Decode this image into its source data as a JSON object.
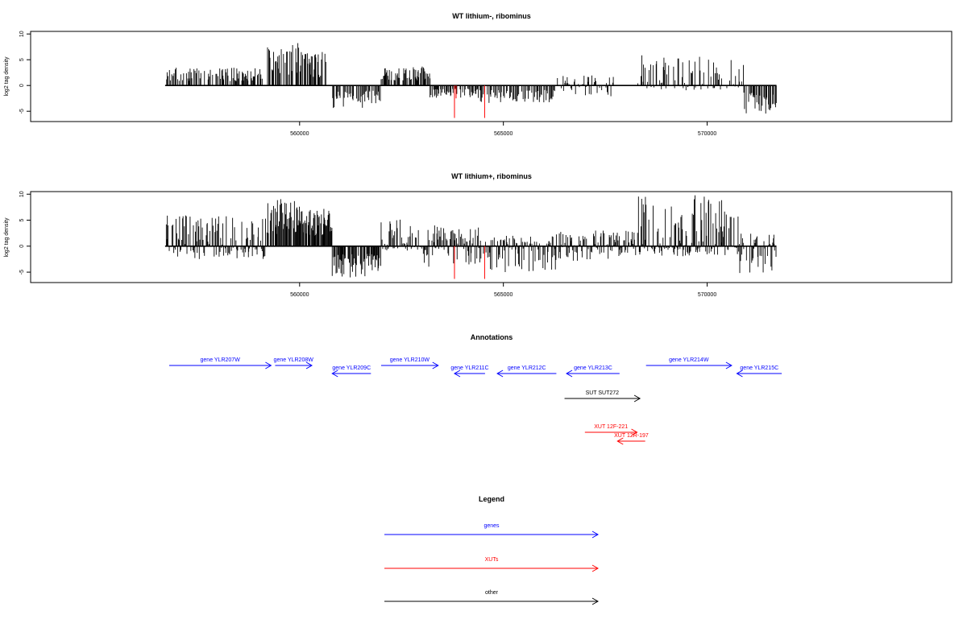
{
  "chart_data": [
    {
      "type": "bar",
      "title": "WT lithium-, ribominus",
      "xlabel": "",
      "ylabel": "log2 tag density",
      "xlim": [
        553400,
        576000
      ],
      "ylim": [
        -7,
        10.5
      ],
      "x_ticks": [
        {
          "value": 560000,
          "label": "560000"
        },
        {
          "value": 565000,
          "label": "565000"
        },
        {
          "value": 570000,
          "label": "570000"
        }
      ],
      "y_ticks": [
        {
          "value": 10,
          "label": "10"
        },
        {
          "value": 5,
          "label": "5"
        },
        {
          "value": 0,
          "label": "0"
        },
        {
          "value": -5,
          "label": "-5"
        }
      ],
      "x_range": [
        556700,
        571700
      ],
      "series": [
        {
          "segments": [
            {
              "from": 556700,
              "to": 559200,
              "min": 0,
              "max": 3.5
            },
            {
              "from": 559200,
              "to": 560100,
              "min": 0,
              "max": 8.3
            },
            {
              "from": 560100,
              "to": 560700,
              "min": 0,
              "max": 6.5
            },
            {
              "from": 560800,
              "to": 561600,
              "min": -4.5,
              "max": 0
            },
            {
              "from": 561600,
              "to": 562000,
              "min": -3.5,
              "max": 0
            },
            {
              "from": 562000,
              "to": 563200,
              "min": 0,
              "max": 3.8
            },
            {
              "from": 563200,
              "to": 564400,
              "min": -2.5,
              "max": 0
            },
            {
              "from": 564400,
              "to": 566300,
              "min": -3.5,
              "max": 0
            },
            {
              "from": 566300,
              "to": 567700,
              "min": -2.5,
              "max": 2
            },
            {
              "from": 568300,
              "to": 570900,
              "min": -1,
              "max": 6
            },
            {
              "from": 570900,
              "to": 571700,
              "min": -5.5,
              "max": 0
            }
          ]
        },
        {
          "red_bars": [
            {
              "x": 563800,
              "y": -6.3
            },
            {
              "x": 564540,
              "y": -6.3
            },
            {
              "x": 563840,
              "y": -2.5
            }
          ]
        }
      ]
    },
    {
      "type": "bar",
      "title": "WT lithium+, ribominus",
      "xlabel": "",
      "ylabel": "log2 tag density",
      "xlim": [
        553400,
        576000
      ],
      "ylim": [
        -7,
        10.5
      ],
      "x_ticks": [
        {
          "value": 560000,
          "label": "560000"
        },
        {
          "value": 565000,
          "label": "565000"
        },
        {
          "value": 570000,
          "label": "570000"
        }
      ],
      "y_ticks": [
        {
          "value": 10,
          "label": "10"
        },
        {
          "value": 5,
          "label": "5"
        },
        {
          "value": 0,
          "label": "0"
        },
        {
          "value": -5,
          "label": "-5"
        }
      ],
      "x_range": [
        556700,
        571700
      ],
      "series": [
        {
          "segments": [
            {
              "from": 556700,
              "to": 559200,
              "min": -2.5,
              "max": 6
            },
            {
              "from": 559200,
              "to": 560100,
              "min": 0,
              "max": 9.2
            },
            {
              "from": 560100,
              "to": 560800,
              "min": 0,
              "max": 7.5
            },
            {
              "from": 560800,
              "to": 561700,
              "min": -6,
              "max": 0
            },
            {
              "from": 561700,
              "to": 562000,
              "min": -5,
              "max": 0
            },
            {
              "from": 562000,
              "to": 563000,
              "min": -1,
              "max": 5.5
            },
            {
              "from": 563000,
              "to": 564400,
              "min": -4,
              "max": 4
            },
            {
              "from": 564400,
              "to": 566300,
              "min": -5,
              "max": 2
            },
            {
              "from": 566300,
              "to": 567700,
              "min": -3,
              "max": 3
            },
            {
              "from": 567700,
              "to": 568300,
              "min": -2,
              "max": 3
            },
            {
              "from": 568300,
              "to": 570800,
              "min": -2,
              "max": 9.8
            },
            {
              "from": 570800,
              "to": 571700,
              "min": -5.5,
              "max": 3
            }
          ]
        },
        {
          "red_bars": [
            {
              "x": 563800,
              "y": -6.3
            },
            {
              "x": 564540,
              "y": -6.3
            }
          ]
        }
      ]
    }
  ],
  "annotations": {
    "title": "Annotations",
    "items": [
      {
        "label": "gene YLR207W",
        "color": "#0000ff",
        "dir": "right",
        "x1": 556800,
        "x2": 559300,
        "row": 0
      },
      {
        "label": "gene YLR208W",
        "color": "#0000ff",
        "dir": "right",
        "x1": 559400,
        "x2": 560300,
        "row": 0
      },
      {
        "label": "gene YLR209C",
        "color": "#0000ff",
        "dir": "left",
        "x1": 560800,
        "x2": 561750,
        "row": 1
      },
      {
        "label": "gene YLR210W",
        "color": "#0000ff",
        "dir": "right",
        "x1": 562000,
        "x2": 563400,
        "row": 0
      },
      {
        "label": "gene YLR211C",
        "color": "#0000ff",
        "dir": "left",
        "x1": 563800,
        "x2": 564550,
        "row": 1
      },
      {
        "label": "gene YLR212C",
        "color": "#0000ff",
        "dir": "left",
        "x1": 564850,
        "x2": 566300,
        "row": 1
      },
      {
        "label": "gene YLR213C",
        "color": "#0000ff",
        "dir": "left",
        "x1": 566550,
        "x2": 567850,
        "row": 1
      },
      {
        "label": "gene YLR214W",
        "color": "#0000ff",
        "dir": "right",
        "x1": 568500,
        "x2": 570600,
        "row": 0
      },
      {
        "label": "gene YLR215C",
        "color": "#0000ff",
        "dir": "left",
        "x1": 570730,
        "x2": 571830,
        "row": 1
      },
      {
        "label": "SUT SUT272",
        "color": "#000000",
        "dir": "right",
        "x1": 566500,
        "x2": 568350,
        "row": 2
      },
      {
        "label": "XUT 12F-221",
        "color": "#ff0000",
        "dir": "right",
        "x1": 567000,
        "x2": 568280,
        "row": 3
      },
      {
        "label": "XUT 12R-197",
        "color": "#ff0000",
        "dir": "left",
        "x1": 567800,
        "x2": 568480,
        "row": 4
      }
    ]
  },
  "legend": {
    "title": "Legend",
    "items": [
      {
        "label": "genes",
        "color": "#0000ff"
      },
      {
        "label": "XUTs",
        "color": "#ff0000"
      },
      {
        "label": "other",
        "color": "#000000"
      }
    ]
  }
}
